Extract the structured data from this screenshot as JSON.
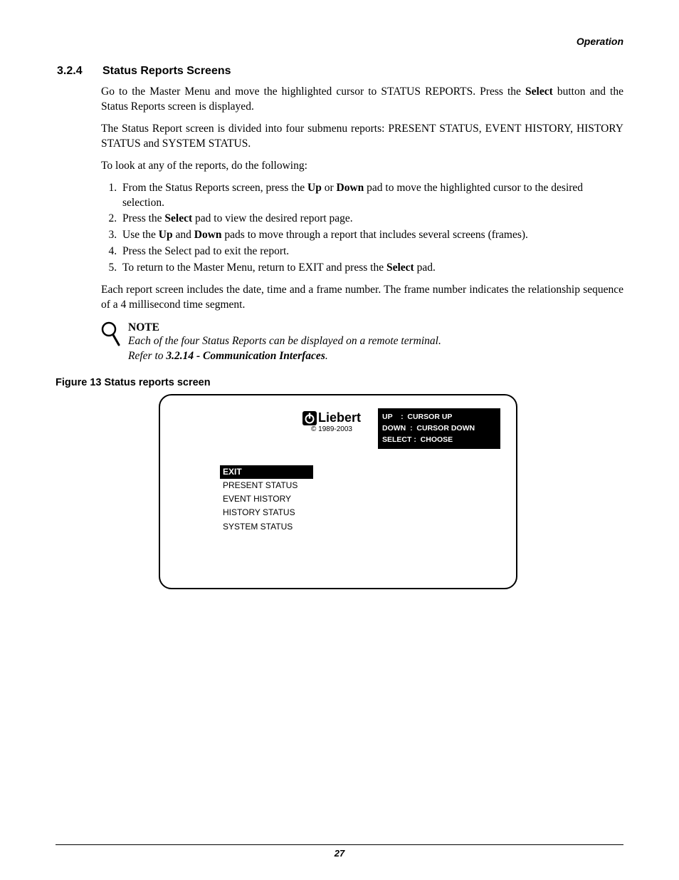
{
  "header_right": "Operation",
  "section": {
    "num": "3.2.4",
    "title": "Status Reports Screens"
  },
  "para1_a": "Go to the Master Menu and move the highlighted cursor to STATUS REPORTS. Press the ",
  "para1_b": "Select",
  "para1_c": " button and the Status Reports screen is displayed.",
  "para2": "The Status Report screen is divided into four submenu reports: PRESENT STATUS, EVENT HISTORY, HISTORY STATUS and SYSTEM STATUS.",
  "para3": "To look at any of the reports, do the following:",
  "steps": {
    "s1a": "From the Status Reports screen, press the ",
    "s1b": "Up",
    "s1c": " or ",
    "s1d": "Down",
    "s1e": " pad to move the highlighted cursor to the desired selection.",
    "s2a": "Press the ",
    "s2b": "Select",
    "s2c": " pad to view the desired report page.",
    "s3a": "Use the ",
    "s3b": "Up",
    "s3c": " and ",
    "s3d": "Down",
    "s3e": " pads to move through a report that includes several screens (frames).",
    "s4": "Press the Select pad to exit the report.",
    "s5a": "To return to the Master Menu, return to EXIT and press the ",
    "s5b": "Select",
    "s5c": " pad."
  },
  "para4": "Each report screen includes the date, time and a frame number. The frame number indicates the relationship sequence of a 4 millisecond time segment.",
  "note": {
    "title": "NOTE",
    "line1": "Each of the four Status Reports can be displayed on a remote terminal.",
    "line2a": "Refer to ",
    "line2b": "3.2.14 - Communication Interfaces",
    "line2c": "."
  },
  "figure_caption": "Figure 13  Status reports screen",
  "screen": {
    "brand": "Liebert",
    "copyright": "© 1989-2003",
    "hints": [
      "UP    :  CURSOR UP",
      "DOWN  :  CURSOR DOWN",
      "SELECT :  CHOOSE"
    ],
    "menu": [
      "EXIT",
      "PRESENT STATUS",
      "EVENT HISTORY",
      "HISTORY STATUS",
      "SYSTEM STATUS"
    ],
    "selected_index": 0
  },
  "page_num": "27"
}
